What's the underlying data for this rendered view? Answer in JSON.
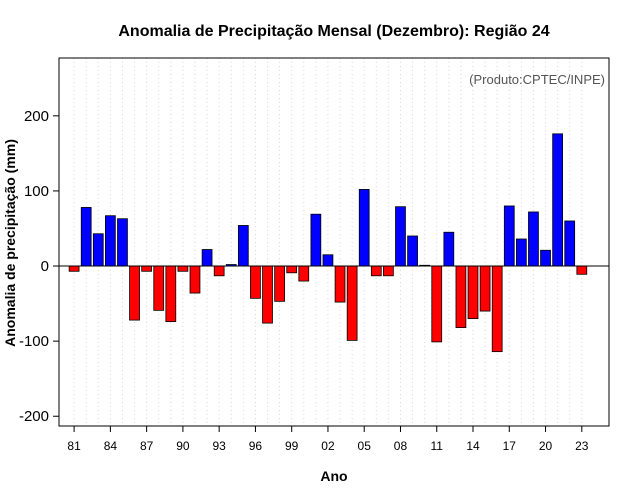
{
  "chart_data": {
    "type": "bar",
    "title": "Anomalia de Precipitação Mensal (Dezembro): Região 24",
    "xlabel": "Ano",
    "ylabel": "Anomalia de precipitação (mm)",
    "annotation": "(Produto:CPTEC/INPE)",
    "ylim": [
      -213,
      277
    ],
    "yticks": [
      -200,
      -100,
      0,
      100,
      200
    ],
    "xlim": [
      1979.75,
      2025.25
    ],
    "positive_color": "#0000ff",
    "negative_color": "#ff0000",
    "x_tick_years": [
      1981,
      1984,
      1987,
      1990,
      1993,
      1996,
      1999,
      2002,
      2005,
      2008,
      2011,
      2014,
      2017,
      2020,
      2023
    ],
    "x_tick_labels": [
      "81",
      "84",
      "87",
      "90",
      "93",
      "96",
      "99",
      "02",
      "05",
      "08",
      "11",
      "14",
      "17",
      "20",
      "23"
    ],
    "years": [
      1981,
      1982,
      1983,
      1984,
      1985,
      1986,
      1987,
      1988,
      1989,
      1990,
      1991,
      1992,
      1993,
      1994,
      1995,
      1996,
      1997,
      1998,
      1999,
      2000,
      2001,
      2002,
      2003,
      2004,
      2005,
      2006,
      2007,
      2008,
      2009,
      2010,
      2011,
      2012,
      2013,
      2014,
      2015,
      2016,
      2017,
      2018,
      2019,
      2020,
      2021,
      2022,
      2023
    ],
    "values": [
      -7,
      78,
      43,
      67,
      63,
      -72,
      -7,
      -59,
      -74,
      -7,
      -36,
      22,
      -13,
      2,
      54,
      -43,
      -76,
      -47,
      -9,
      -20,
      69,
      15,
      -48,
      -99,
      102,
      -13,
      -13,
      79,
      40,
      1,
      -101,
      45,
      -82,
      -70,
      -60,
      -114,
      80,
      36,
      72,
      21,
      176,
      60,
      -11
    ]
  }
}
